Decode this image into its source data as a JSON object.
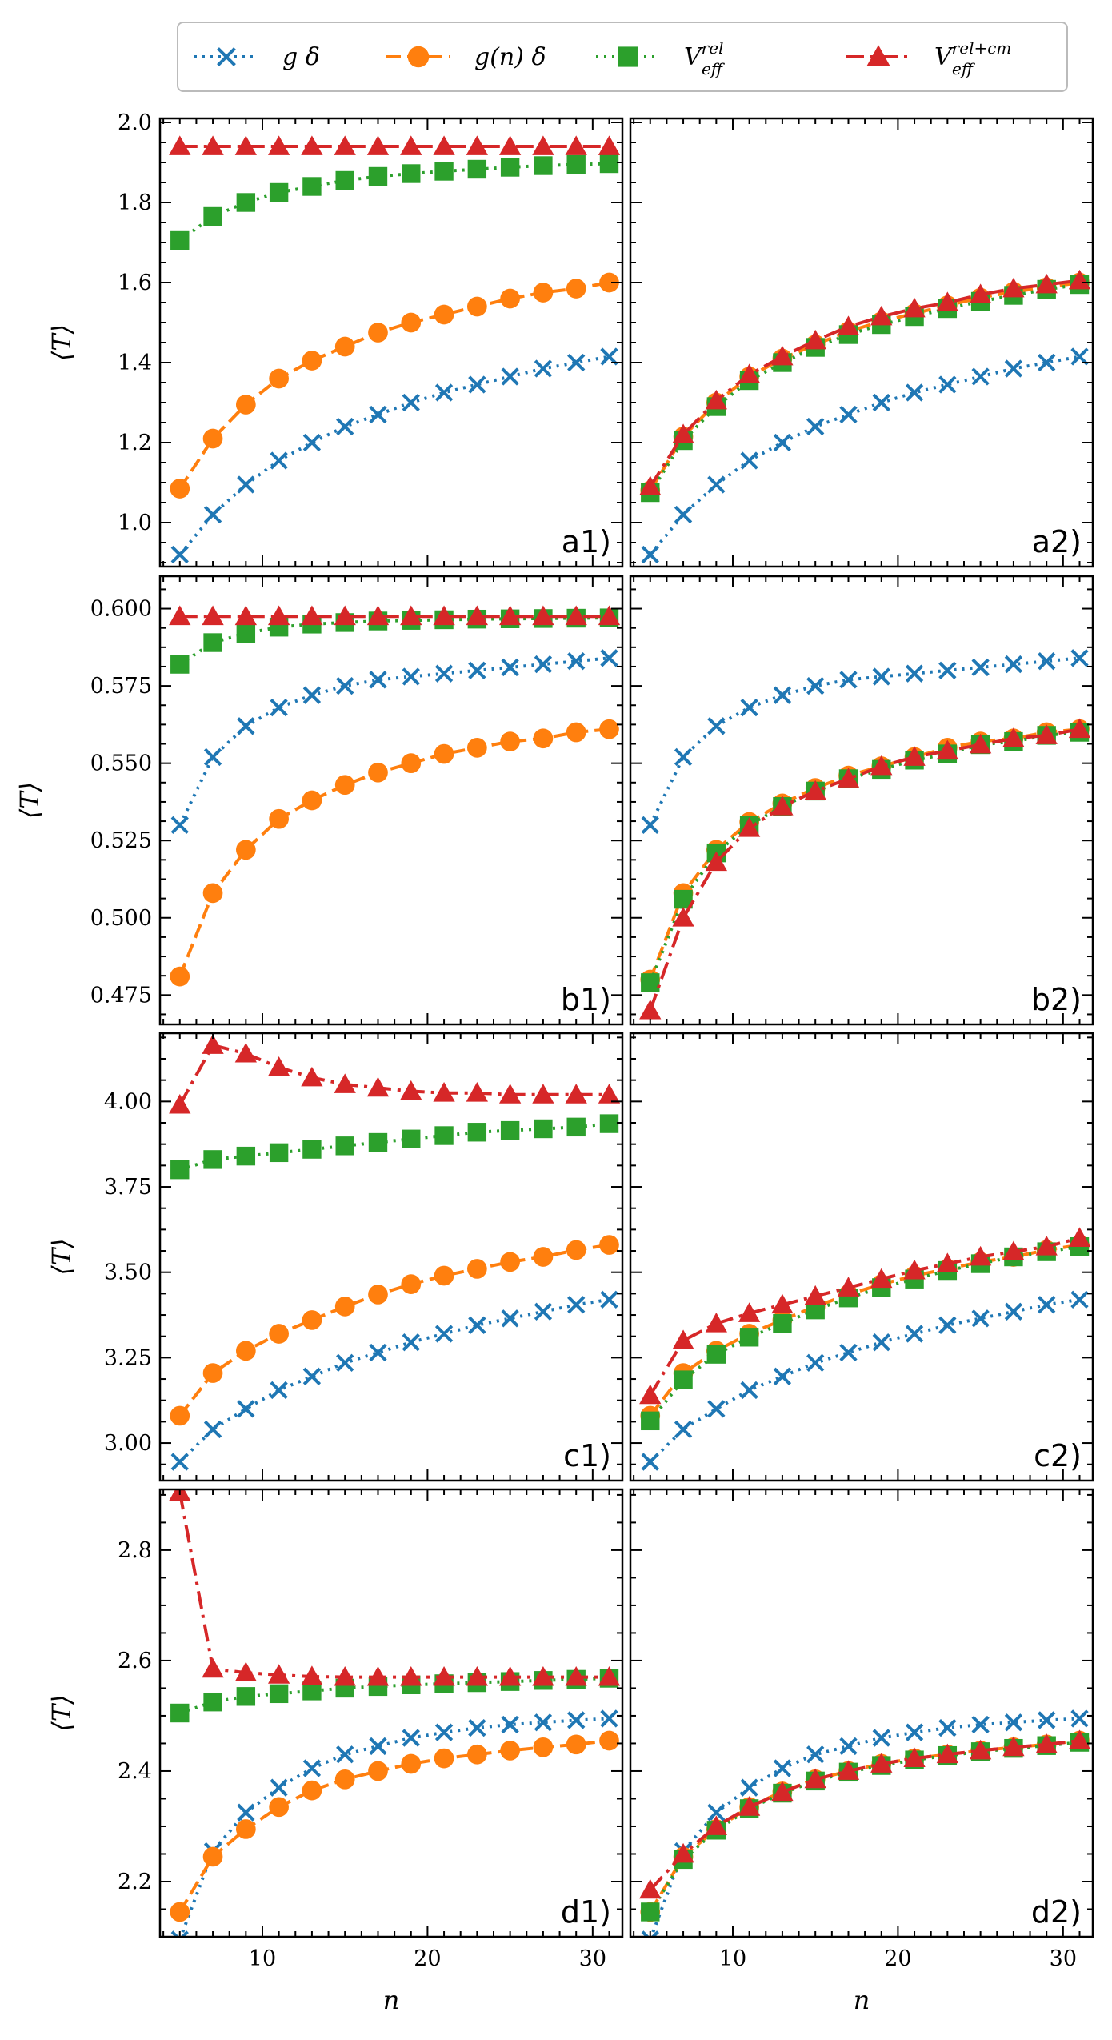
{
  "chart_data": {
    "type": "line",
    "ylabel": "⟨T⟩",
    "xlabel": "n",
    "xlim": [
      3.8,
      31.8
    ],
    "xticks": [
      10,
      20,
      30
    ],
    "legend": {
      "placement": "top-center",
      "entries": [
        {
          "key": "gdelta",
          "label": "g δ",
          "base": "V",
          "sup": "",
          "sub": ""
        },
        {
          "key": "gn",
          "label": "g(n) δ",
          "base": "V",
          "sup": "",
          "sub": ""
        },
        {
          "key": "vrel",
          "label": "V",
          "base": "V",
          "sup": "rel",
          "sub": "eff"
        },
        {
          "key": "vrelcm",
          "label": "V",
          "base": "V",
          "sup": "rel+cm",
          "sub": "eff"
        }
      ]
    },
    "styles": {
      "gdelta": {
        "color": "#1f77b4",
        "marker": "x",
        "dash": "3,7"
      },
      "gn": {
        "color": "#ff7f0e",
        "marker": "circle",
        "dash": "18,8"
      },
      "vrel": {
        "color": "#2ca02c",
        "marker": "square",
        "dash": "3,7"
      },
      "vrelcm": {
        "color": "#d62728",
        "marker": "triangle",
        "dash": "22,8,4,8"
      }
    },
    "n": [
      5,
      7,
      9,
      11,
      13,
      15,
      17,
      19,
      21,
      23,
      25,
      27,
      29,
      31
    ],
    "rows": [
      {
        "ylim": [
          0.89,
          2.01
        ],
        "yticks": [
          "1.0",
          "1.2",
          "1.4",
          "1.6",
          "1.8",
          "2.0"
        ],
        "panels": [
          {
            "label": "a1)",
            "series": {
              "gdelta": [
                0.92,
                1.02,
                1.095,
                1.155,
                1.2,
                1.24,
                1.27,
                1.3,
                1.325,
                1.345,
                1.365,
                1.385,
                1.4,
                1.415
              ],
              "gn": [
                1.085,
                1.21,
                1.295,
                1.36,
                1.405,
                1.44,
                1.475,
                1.5,
                1.52,
                1.54,
                1.56,
                1.575,
                1.585,
                1.6
              ],
              "vrel": [
                1.705,
                1.765,
                1.8,
                1.825,
                1.84,
                1.855,
                1.865,
                1.872,
                1.878,
                1.883,
                1.888,
                1.892,
                1.895,
                1.897
              ],
              "vrelcm": [
                1.94,
                1.94,
                1.94,
                1.94,
                1.94,
                1.94,
                1.94,
                1.94,
                1.94,
                1.94,
                1.94,
                1.94,
                1.94,
                1.94
              ]
            }
          },
          {
            "label": "a2)",
            "series": {
              "gdelta": [
                0.92,
                1.02,
                1.095,
                1.155,
                1.2,
                1.24,
                1.27,
                1.3,
                1.325,
                1.345,
                1.365,
                1.385,
                1.4,
                1.415
              ],
              "gn": [
                1.08,
                1.215,
                1.3,
                1.365,
                1.41,
                1.445,
                1.478,
                1.503,
                1.523,
                1.543,
                1.562,
                1.577,
                1.588,
                1.6
              ],
              "vrel": [
                1.075,
                1.205,
                1.29,
                1.355,
                1.4,
                1.438,
                1.47,
                1.495,
                1.515,
                1.535,
                1.553,
                1.568,
                1.583,
                1.595
              ],
              "vrelcm": [
                1.09,
                1.22,
                1.305,
                1.37,
                1.415,
                1.455,
                1.49,
                1.515,
                1.535,
                1.55,
                1.57,
                1.585,
                1.595,
                1.605
              ]
            }
          }
        ]
      },
      {
        "ylim": [
          0.4655,
          0.6105
        ],
        "yticks": [
          "0.475",
          "0.500",
          "0.525",
          "0.550",
          "0.575",
          "0.600"
        ],
        "panels": [
          {
            "label": "b1)",
            "series": {
              "gdelta": [
                0.53,
                0.552,
                0.562,
                0.568,
                0.572,
                0.575,
                0.577,
                0.578,
                0.579,
                0.58,
                0.581,
                0.582,
                0.583,
                0.584
              ],
              "gn": [
                0.481,
                0.508,
                0.522,
                0.532,
                0.538,
                0.543,
                0.547,
                0.55,
                0.553,
                0.555,
                0.557,
                0.558,
                0.56,
                0.561
              ],
              "vrel": [
                0.582,
                0.589,
                0.592,
                0.594,
                0.595,
                0.5955,
                0.596,
                0.5962,
                0.5964,
                0.5966,
                0.5967,
                0.5968,
                0.5969,
                0.597
              ],
              "vrelcm": [
                0.5975,
                0.5975,
                0.5975,
                0.5975,
                0.5975,
                0.5975,
                0.5975,
                0.5975,
                0.5975,
                0.5975,
                0.5975,
                0.5975,
                0.5975,
                0.5975
              ]
            }
          },
          {
            "label": "b2)",
            "series": {
              "gdelta": [
                0.53,
                0.552,
                0.562,
                0.568,
                0.572,
                0.575,
                0.577,
                0.578,
                0.579,
                0.58,
                0.581,
                0.582,
                0.583,
                0.584
              ],
              "gn": [
                0.48,
                0.508,
                0.522,
                0.531,
                0.537,
                0.542,
                0.546,
                0.549,
                0.552,
                0.555,
                0.557,
                0.558,
                0.56,
                0.561
              ],
              "vrel": [
                0.479,
                0.506,
                0.521,
                0.53,
                0.536,
                0.541,
                0.545,
                0.548,
                0.551,
                0.553,
                0.556,
                0.557,
                0.559,
                0.56
              ],
              "vrelcm": [
                0.47,
                0.5,
                0.518,
                0.529,
                0.536,
                0.541,
                0.545,
                0.549,
                0.552,
                0.554,
                0.556,
                0.558,
                0.559,
                0.561
              ]
            }
          }
        ]
      },
      {
        "ylim": [
          2.89,
          4.2
        ],
        "yticks": [
          "3.00",
          "3.25",
          "3.50",
          "3.75",
          "4.00"
        ],
        "panels": [
          {
            "label": "c1)",
            "series": {
              "gdelta": [
                2.945,
                3.04,
                3.1,
                3.155,
                3.195,
                3.235,
                3.265,
                3.295,
                3.32,
                3.345,
                3.365,
                3.385,
                3.405,
                3.42
              ],
              "gn": [
                3.08,
                3.205,
                3.27,
                3.32,
                3.36,
                3.4,
                3.435,
                3.465,
                3.49,
                3.51,
                3.53,
                3.545,
                3.565,
                3.58
              ],
              "vrel": [
                3.8,
                3.83,
                3.84,
                3.85,
                3.86,
                3.87,
                3.88,
                3.89,
                3.9,
                3.91,
                3.915,
                3.92,
                3.925,
                3.935
              ],
              "vrelcm": [
                3.99,
                4.165,
                4.14,
                4.1,
                4.07,
                4.05,
                4.04,
                4.03,
                4.025,
                4.025,
                4.02,
                4.02,
                4.02,
                4.02
              ]
            }
          },
          {
            "label": "c2)",
            "series": {
              "gdelta": [
                2.945,
                3.04,
                3.1,
                3.155,
                3.195,
                3.235,
                3.265,
                3.295,
                3.32,
                3.345,
                3.365,
                3.385,
                3.405,
                3.42
              ],
              "gn": [
                3.08,
                3.205,
                3.27,
                3.32,
                3.36,
                3.4,
                3.435,
                3.465,
                3.49,
                3.51,
                3.53,
                3.545,
                3.565,
                3.58
              ],
              "vrel": [
                3.065,
                3.185,
                3.26,
                3.31,
                3.35,
                3.39,
                3.425,
                3.455,
                3.48,
                3.505,
                3.525,
                3.545,
                3.56,
                3.575
              ],
              "vrelcm": [
                3.14,
                3.3,
                3.35,
                3.38,
                3.405,
                3.43,
                3.455,
                3.48,
                3.505,
                3.525,
                3.545,
                3.56,
                3.575,
                3.6
              ]
            }
          }
        ]
      },
      {
        "ylim": [
          2.1,
          2.91
        ],
        "yticks": [
          "2.2",
          "2.4",
          "2.6",
          "2.8"
        ],
        "panels": [
          {
            "label": "d1)",
            "series": {
              "gdelta": [
                2.095,
                2.255,
                2.325,
                2.37,
                2.405,
                2.43,
                2.445,
                2.46,
                2.47,
                2.478,
                2.484,
                2.488,
                2.492,
                2.495
              ],
              "gn": [
                2.145,
                2.245,
                2.295,
                2.335,
                2.365,
                2.385,
                2.4,
                2.413,
                2.423,
                2.43,
                2.437,
                2.443,
                2.448,
                2.455
              ],
              "vrel": [
                2.505,
                2.525,
                2.535,
                2.54,
                2.545,
                2.55,
                2.553,
                2.556,
                2.558,
                2.56,
                2.562,
                2.564,
                2.566,
                2.568
              ],
              "vrelcm": [
                2.905,
                2.585,
                2.578,
                2.574,
                2.571,
                2.57,
                2.57,
                2.57,
                2.57,
                2.57,
                2.57,
                2.57,
                2.57,
                2.57
              ]
            }
          },
          {
            "label": "d2)",
            "series": {
              "gdelta": [
                2.095,
                2.255,
                2.325,
                2.37,
                2.405,
                2.43,
                2.445,
                2.46,
                2.47,
                2.478,
                2.484,
                2.488,
                2.492,
                2.495
              ],
              "gn": [
                2.145,
                2.245,
                2.295,
                2.335,
                2.363,
                2.385,
                2.4,
                2.413,
                2.423,
                2.43,
                2.437,
                2.443,
                2.448,
                2.455
              ],
              "vrel": [
                2.145,
                2.24,
                2.293,
                2.332,
                2.36,
                2.382,
                2.398,
                2.41,
                2.42,
                2.428,
                2.435,
                2.441,
                2.446,
                2.452
              ],
              "vrelcm": [
                2.185,
                2.25,
                2.3,
                2.335,
                2.362,
                2.385,
                2.4,
                2.413,
                2.423,
                2.43,
                2.437,
                2.443,
                2.448,
                2.455
              ]
            }
          }
        ]
      }
    ]
  }
}
